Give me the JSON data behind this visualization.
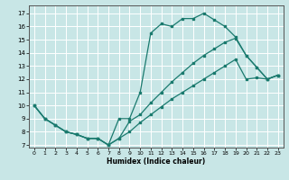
{
  "xlabel": "Humidex (Indice chaleur)",
  "xlim": [
    -0.5,
    23.5
  ],
  "ylim": [
    6.8,
    17.6
  ],
  "yticks": [
    7,
    8,
    9,
    10,
    11,
    12,
    13,
    14,
    15,
    16,
    17
  ],
  "xticks": [
    0,
    1,
    2,
    3,
    4,
    5,
    6,
    7,
    8,
    9,
    10,
    11,
    12,
    13,
    14,
    15,
    16,
    17,
    18,
    19,
    20,
    21,
    22,
    23
  ],
  "bg_color": "#c8e6e6",
  "grid_color": "#ffffff",
  "line_color": "#1a7a6e",
  "curve1_x": [
    0,
    1,
    2,
    3,
    4,
    5,
    6,
    7,
    8,
    9,
    10,
    11,
    12,
    13,
    14,
    15,
    16,
    17,
    18,
    19,
    20,
    21,
    22,
    23
  ],
  "curve1_y": [
    10.0,
    9.0,
    8.5,
    8.0,
    7.8,
    7.5,
    7.5,
    7.0,
    9.0,
    9.0,
    11.0,
    15.5,
    16.2,
    16.0,
    16.6,
    16.6,
    17.0,
    16.5,
    16.0,
    15.2,
    13.8,
    12.9,
    12.0,
    12.3
  ],
  "curve2_x": [
    0,
    1,
    2,
    3,
    4,
    5,
    6,
    7,
    8,
    9,
    10,
    11,
    12,
    13,
    14,
    15,
    16,
    17,
    18,
    19,
    20,
    21,
    22,
    23
  ],
  "curve2_y": [
    10.0,
    9.0,
    8.5,
    8.0,
    7.8,
    7.5,
    7.5,
    7.0,
    7.5,
    8.8,
    9.3,
    10.2,
    11.0,
    11.8,
    12.5,
    13.2,
    13.8,
    14.3,
    14.8,
    15.1,
    13.8,
    12.9,
    12.0,
    12.3
  ],
  "curve3_x": [
    0,
    1,
    2,
    3,
    4,
    5,
    6,
    7,
    8,
    9,
    10,
    11,
    12,
    13,
    14,
    15,
    16,
    17,
    18,
    19,
    20,
    21,
    22,
    23
  ],
  "curve3_y": [
    10.0,
    9.0,
    8.5,
    8.0,
    7.8,
    7.5,
    7.5,
    7.0,
    7.5,
    8.0,
    8.7,
    9.3,
    9.9,
    10.5,
    11.0,
    11.5,
    12.0,
    12.5,
    13.0,
    13.5,
    12.0,
    12.1,
    12.0,
    12.3
  ]
}
